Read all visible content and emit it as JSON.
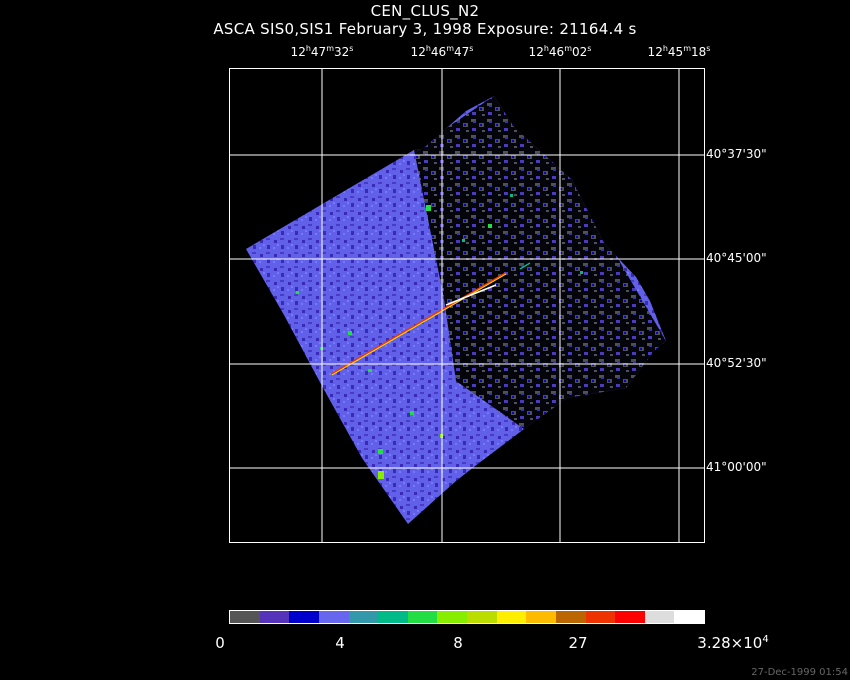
{
  "title": "CEN_CLUS_N2",
  "subtitle": "ASCA SIS0,SIS1 February 3, 1998 Exposure: 21164.4 s",
  "ra_labels": [
    {
      "h": "12",
      "m": "47",
      "s": "32"
    },
    {
      "h": "12",
      "m": "46",
      "s": "47"
    },
    {
      "h": "12",
      "m": "46",
      "s": "02"
    },
    {
      "h": "12",
      "m": "45",
      "s": "18"
    }
  ],
  "dec_labels": [
    "40°37'30\"",
    "40°45'00\"",
    "40°52'30\"",
    "41°00'00\""
  ],
  "colorbar": {
    "colors": [
      "#555555",
      "#5533bb",
      "#0000cc",
      "#6666ee",
      "#3399aa",
      "#00bb88",
      "#22dd44",
      "#88ee00",
      "#bbdd00",
      "#ffee00",
      "#ffbb00",
      "#bb6600",
      "#ee3300",
      "#ff0000",
      "#dddddd",
      "#ffffff"
    ],
    "labels": {
      "l0": "0",
      "l1": "4",
      "l2": "8",
      "l3": "27",
      "l4_mant": "3.28×10",
      "l4_exp": "4"
    }
  },
  "timestamp": "27-Dec-1999 01:54"
}
